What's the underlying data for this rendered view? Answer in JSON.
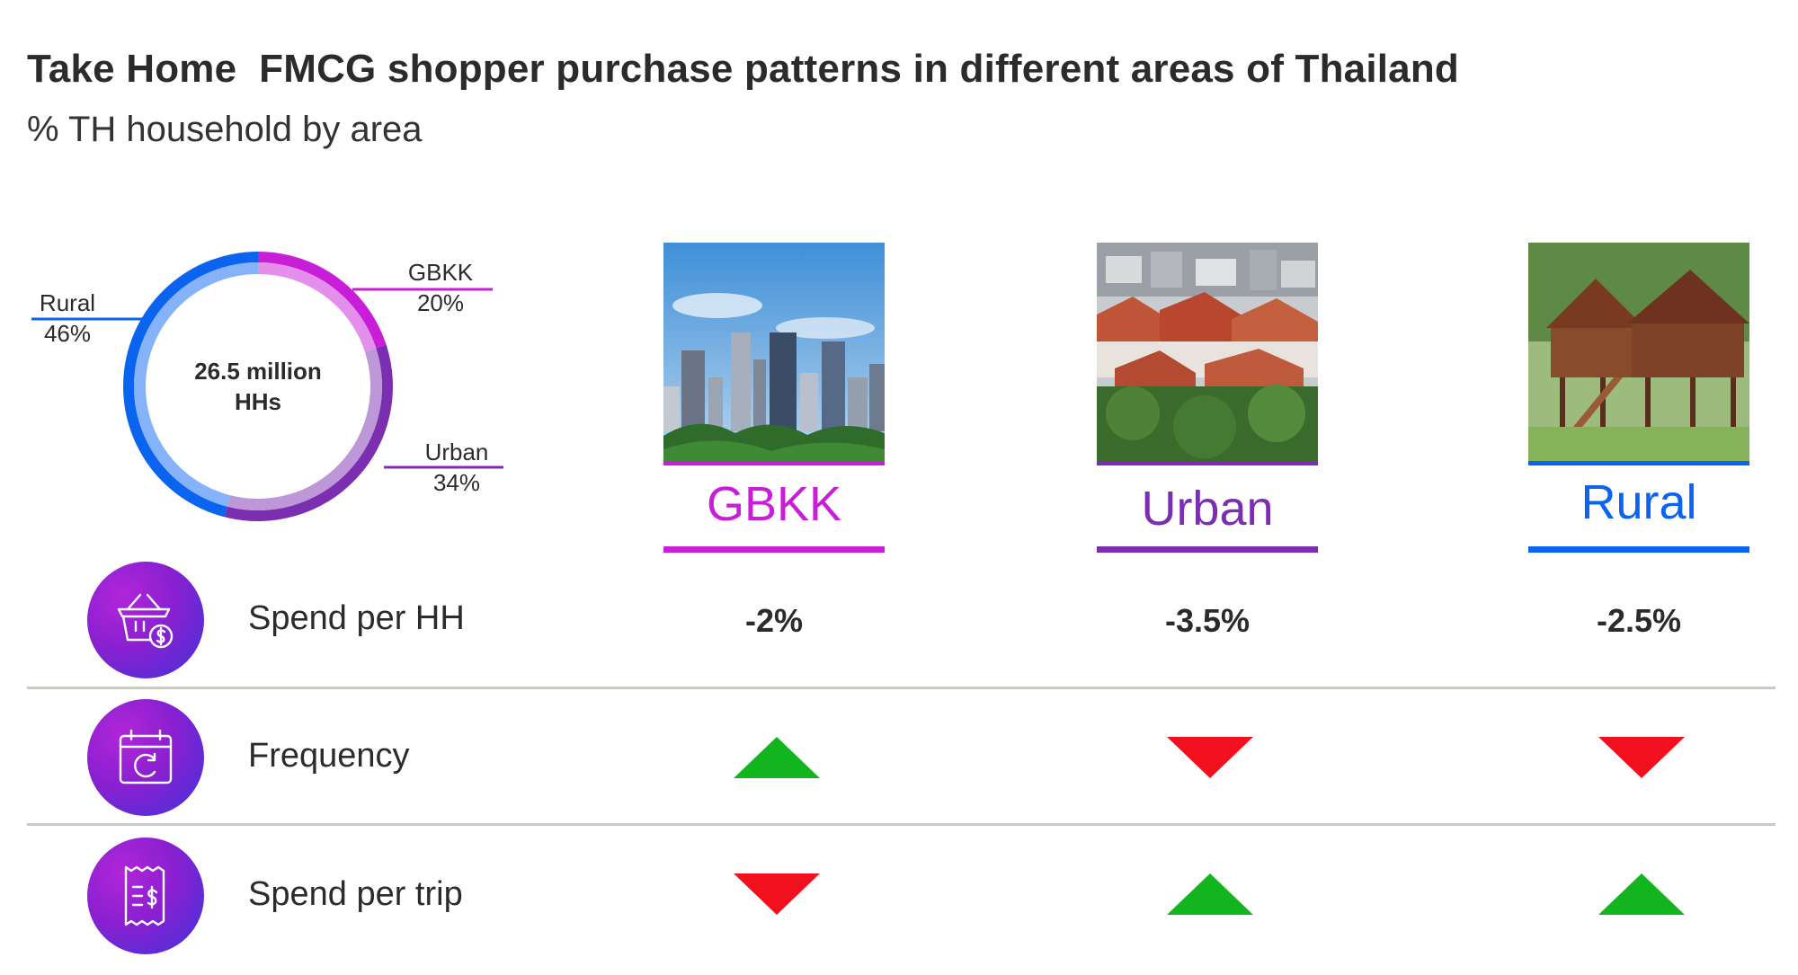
{
  "title": "Take Home  FMCG shopper purchase patterns in different areas of Thailand",
  "subtitle": "% TH household by area",
  "chart_data": [
    {
      "type": "pie",
      "center_label_line1": "26.5 million",
      "center_label_line2": "HHs",
      "slices": [
        {
          "name": "GBKK",
          "value": 20,
          "label": "20%",
          "color": "#c81ed8"
        },
        {
          "name": "Urban",
          "value": 34,
          "label": "34%",
          "color": "#7b2fb0"
        },
        {
          "name": "Rural",
          "value": 46,
          "label": "46%",
          "color": "#0a64f0"
        }
      ]
    },
    {
      "type": "table",
      "columns": [
        "GBKK",
        "Urban",
        "Rural"
      ],
      "column_colors": [
        "#c81ed8",
        "#7b2fb0",
        "#0a64f0"
      ],
      "rows": [
        {
          "label": "Spend per HH",
          "icon": "shopping-basket-dollar-icon",
          "values": [
            "-2%",
            "-3.5%",
            "-2.5%"
          ]
        },
        {
          "label": "Frequency",
          "icon": "calendar-refresh-icon",
          "values": [
            "up",
            "down",
            "down"
          ]
        },
        {
          "label": "Spend per trip",
          "icon": "receipt-dollar-icon",
          "values": [
            "down",
            "up",
            "up"
          ]
        }
      ]
    }
  ],
  "colors": {
    "up": "#13b51f",
    "down": "#f2101e",
    "divider": "#c9cbc4"
  }
}
